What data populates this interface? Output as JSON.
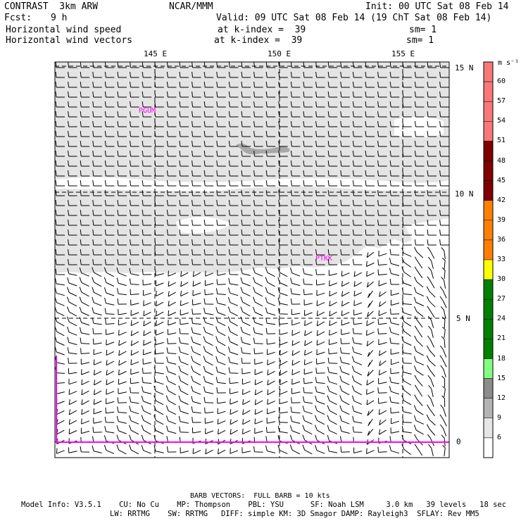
{
  "header": {
    "model": "CONTRAST  3km ARW",
    "center": "NCAR/MMM",
    "init": "Init: 00 UTC Sat 08 Feb 14",
    "fcst_label": "Fcst:",
    "fcst_hours": "9 h",
    "valid": "Valid: 09 UTC Sat 08 Feb 14 (19 ChT Sat 08 Feb 14)",
    "field1": "Horizontal wind speed",
    "field1_level": "at k-index =  39",
    "field1_sm": "sm= 1",
    "field2": "Horizontal wind vectors",
    "field2_level": "at k-index =  39",
    "field2_sm": "sm= 1"
  },
  "map": {
    "lon_labels": [
      "145 E",
      "150 E",
      "155 E"
    ],
    "lat_labels": [
      "15 N",
      "10 N",
      "5 N",
      "0"
    ],
    "stations": [
      "PGUM",
      "PTKK"
    ]
  },
  "colorbar": {
    "units": "m s⁻¹",
    "levels": [
      "60",
      "57",
      "54",
      "51",
      "48",
      "45",
      "42",
      "39",
      "36",
      "33",
      "30",
      "27",
      "24",
      "21",
      "18",
      "15",
      "12",
      "9",
      "6"
    ],
    "colors": [
      "#f87878",
      "#f87878",
      "#f87878",
      "#f87878",
      "#800000",
      "#800000",
      "#800000",
      "#ff8000",
      "#ff8000",
      "#ff8000",
      "#ffff00",
      "#008000",
      "#008000",
      "#008000",
      "#008000",
      "#80ff80",
      "#8c8c8c",
      "#b4b4b4",
      "#e6e6e6",
      "#ffffff"
    ]
  },
  "footer": {
    "barb_note": "BARB VECTORS:  FULL BARB = 10 kts",
    "line1": "Model Info: V3.5.1    CU: No Cu    MP: Thompson    PBL: YSU      SF: Noah LSM     3.0 km   39 levels   18 sec",
    "line2": "LW: RRTMG    SW: RRTMG   DIFF: simple KM: 3D Smagor DAMP: Rayleigh3  SFLAY: Rev MM5"
  }
}
